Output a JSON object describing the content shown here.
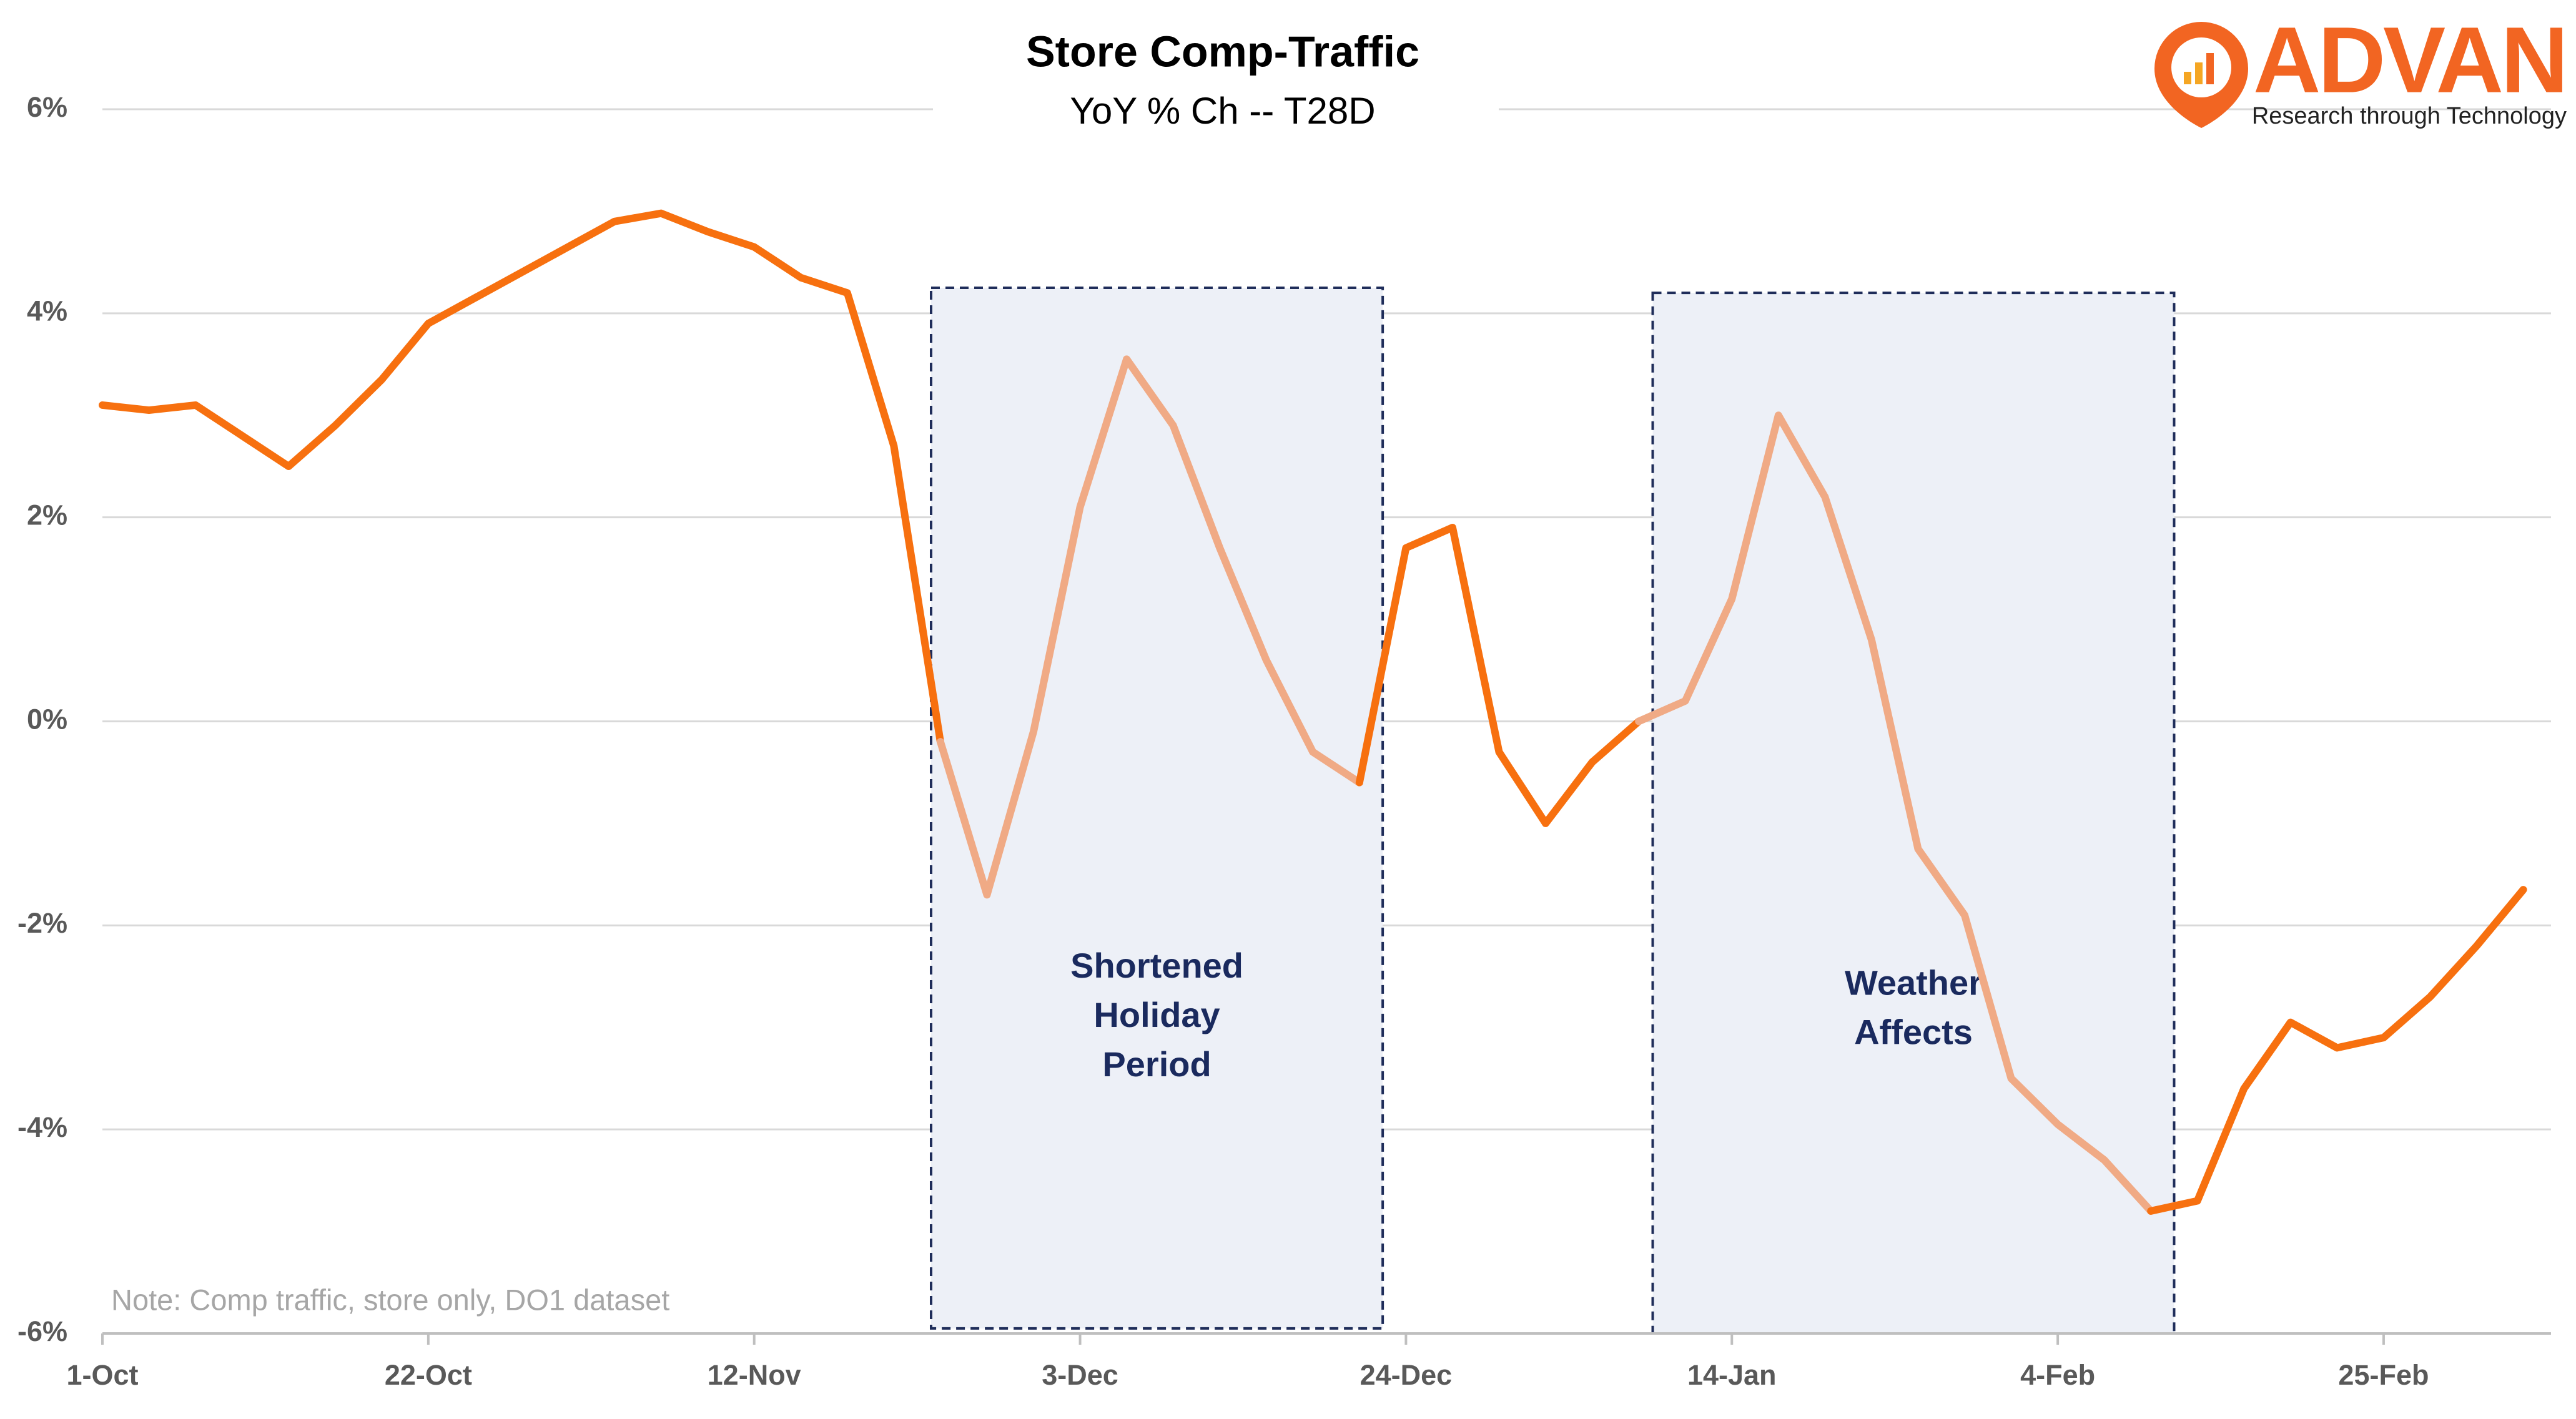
{
  "chart_data": {
    "type": "line",
    "title": "Store Comp-Traffic",
    "subtitle": "YoY % Ch -- T28D",
    "note": "Note: Comp traffic, store only, DO1 dataset",
    "logo": {
      "name": "ADVAN",
      "tagline": "Research through Technology"
    },
    "categories": [
      "1-Oct",
      null,
      null,
      null,
      null,
      null,
      null,
      "22-Oct",
      null,
      null,
      null,
      null,
      null,
      null,
      "12-Nov",
      null,
      null,
      null,
      null,
      null,
      null,
      "3-Dec",
      null,
      null,
      null,
      null,
      null,
      null,
      "24-Dec",
      null,
      null,
      null,
      null,
      null,
      null,
      "14-Jan",
      null,
      null,
      null,
      null,
      null,
      null,
      "4-Feb",
      null,
      null,
      null,
      null,
      null,
      null,
      "25-Feb",
      null,
      null,
      null
    ],
    "series": [
      {
        "color": "#f7700f",
        "highlight_color": "#f0aa85",
        "values": [
          3.1,
          3.05,
          3.1,
          2.8,
          2.5,
          2.9,
          3.35,
          3.9,
          4.15,
          4.4,
          4.65,
          4.9,
          4.98,
          4.8,
          4.65,
          4.35,
          4.2,
          2.7,
          -0.2,
          -1.7,
          -0.1,
          2.1,
          3.55,
          2.9,
          1.7,
          0.6,
          -0.3,
          -0.6,
          1.7,
          1.9,
          -0.3,
          -1.0,
          -0.4,
          0.0,
          0.2,
          1.2,
          3.0,
          2.2,
          0.8,
          -1.25,
          -1.9,
          -3.5,
          -3.95,
          -4.3,
          -4.8,
          -4.7,
          -3.6,
          -2.95,
          -3.2,
          -3.1,
          -2.7,
          -2.2,
          -1.65
        ]
      }
    ],
    "regions": [
      {
        "x_range": [
          17.8,
          27.5
        ],
        "y_range": [
          4.25,
          -5.95
        ],
        "lines": [
          "Shortened",
          "Holiday",
          "Period"
        ]
      },
      {
        "x_range": [
          33.3,
          44.5
        ],
        "y_range": [
          4.2,
          -6.0
        ],
        "lines": [
          "Weather",
          "Affects"
        ]
      }
    ],
    "ylim": [
      -6,
      6
    ],
    "yticks": [
      {
        "value": 6,
        "label": "6%"
      },
      {
        "value": 4,
        "label": "4%"
      },
      {
        "value": 2,
        "label": "2%"
      },
      {
        "value": 0,
        "label": "0%"
      },
      {
        "value": -2,
        "label": "-2%"
      },
      {
        "value": -4,
        "label": "-4%"
      },
      {
        "value": -6,
        "label": "-6%"
      }
    ],
    "grid": true
  }
}
